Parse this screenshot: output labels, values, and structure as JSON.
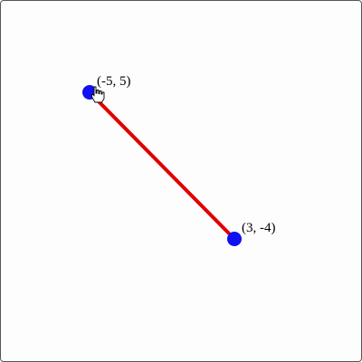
{
  "board": {
    "colors": {
      "segment": "#e00000",
      "point": "#1010f0",
      "border": "#555555"
    },
    "points": [
      {
        "label": "(-5, 5)",
        "x": -5,
        "y": 5
      },
      {
        "label": "(3, -4)",
        "x": 3,
        "y": -4
      }
    ],
    "cursor": "hand-pointer-icon"
  }
}
